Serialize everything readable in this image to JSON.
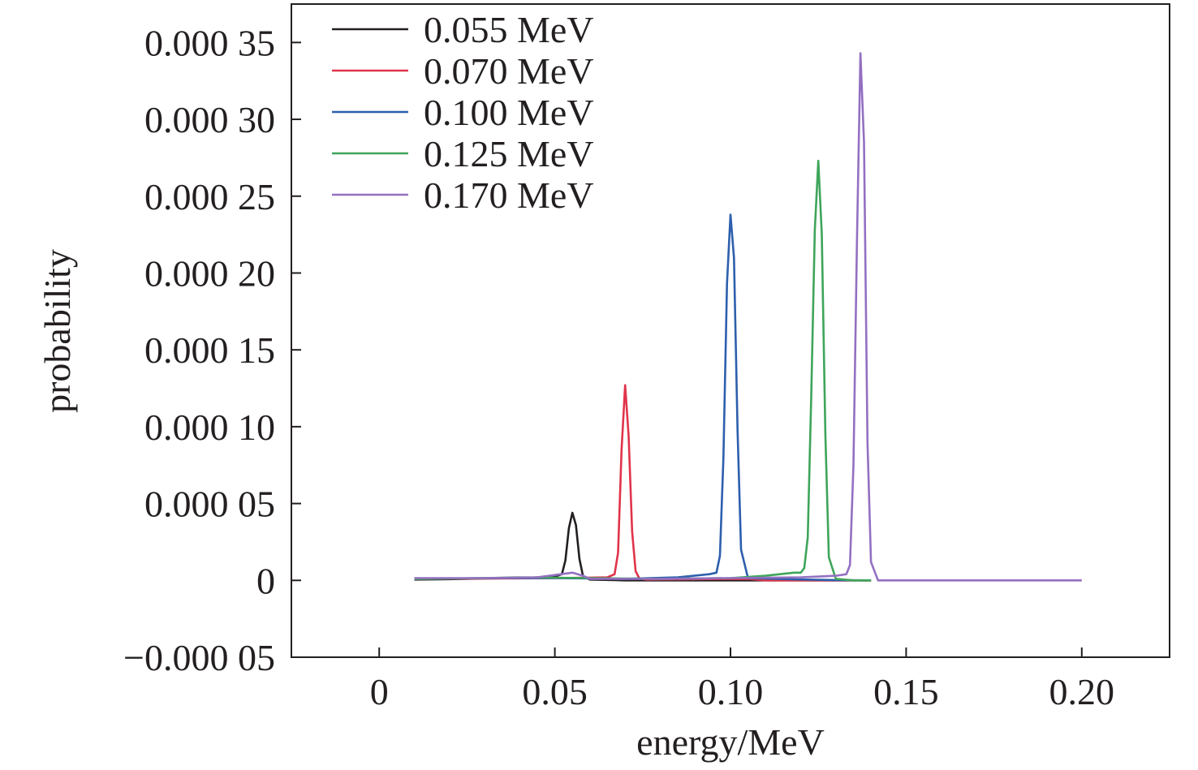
{
  "chart_data": {
    "type": "line",
    "xlabel": "energy/MeV",
    "ylabel": "probability",
    "xlim": [
      -0.025,
      0.225
    ],
    "ylim": [
      -5e-05,
      0.000375
    ],
    "x_ticks": [
      0,
      0.05,
      0.1,
      0.15,
      0.2
    ],
    "x_tick_labels": [
      "0",
      "0.05",
      "0.10",
      "0.15",
      "0.20"
    ],
    "y_ticks": [
      -5e-05,
      0,
      5e-05,
      0.0001,
      0.00015,
      0.0002,
      0.00025,
      0.0003,
      0.00035
    ],
    "y_tick_labels": [
      "−0.000 05",
      "0",
      "0.000 05",
      "0.000 10",
      "0.000 15",
      "0.000 20",
      "0.000 25",
      "0.000 30",
      "0.000 35"
    ],
    "grid": false,
    "legend_position": "top-left",
    "series": [
      {
        "name": "0.055 MeV",
        "color": "#231f20",
        "x": [
          0.01,
          0.02,
          0.03,
          0.04,
          0.045,
          0.05,
          0.052,
          0.053,
          0.054,
          0.055,
          0.056,
          0.057,
          0.058,
          0.06,
          0.07,
          0.08,
          0.1,
          0.12,
          0.14
        ],
        "y": [
          5e-07,
          8e-07,
          1.2e-06,
          1.5e-06,
          2e-06,
          2.5e-06,
          4e-06,
          1.3e-05,
          3.4e-05,
          4.4e-05,
          3.6e-05,
          1.4e-05,
          3e-06,
          5e-07,
          0,
          0,
          0,
          0,
          0
        ]
      },
      {
        "name": "0.070 MeV",
        "color": "#e0344b",
        "x": [
          0.01,
          0.03,
          0.05,
          0.06,
          0.065,
          0.067,
          0.068,
          0.069,
          0.07,
          0.071,
          0.072,
          0.073,
          0.074,
          0.076,
          0.09,
          0.105,
          0.11,
          0.14
        ],
        "y": [
          1e-06,
          1.2e-06,
          1.5e-06,
          1.8e-06,
          2e-06,
          4e-06,
          1.8e-05,
          8.5e-05,
          0.000127,
          9.4e-05,
          3.2e-05,
          6e-06,
          1.5e-06,
          5e-07,
          8e-07,
          1e-06,
          0,
          0
        ]
      },
      {
        "name": "0.100 MeV",
        "color": "#2d5fad",
        "x": [
          0.01,
          0.03,
          0.05,
          0.07,
          0.085,
          0.094,
          0.096,
          0.097,
          0.098,
          0.099,
          0.1,
          0.101,
          0.102,
          0.103,
          0.105,
          0.12,
          0.13,
          0.14
        ],
        "y": [
          1e-06,
          1.5e-06,
          1.5e-06,
          1e-06,
          2e-06,
          4e-06,
          5e-06,
          1.6e-05,
          8e-05,
          0.000193,
          0.000238,
          0.00021,
          9.8e-05,
          2e-05,
          1.5e-06,
          6e-07,
          2e-07,
          0
        ]
      },
      {
        "name": "0.125 MeV",
        "color": "#3ea55a",
        "x": [
          0.01,
          0.03,
          0.04,
          0.06,
          0.08,
          0.1,
          0.11,
          0.118,
          0.12,
          0.121,
          0.122,
          0.123,
          0.124,
          0.125,
          0.126,
          0.127,
          0.128,
          0.13,
          0.135,
          0.14
        ],
        "y": [
          1e-06,
          1.5e-06,
          2e-06,
          1.5e-06,
          1e-06,
          1.5e-06,
          3e-06,
          5e-06,
          5e-06,
          8e-06,
          2.8e-05,
          0.00012,
          0.000228,
          0.000273,
          0.000225,
          9.5e-05,
          1.5e-05,
          1e-06,
          0,
          0
        ]
      },
      {
        "name": "0.170 MeV",
        "color": "#9370c2",
        "x": [
          0.01,
          0.03,
          0.045,
          0.05,
          0.055,
          0.058,
          0.06,
          0.08,
          0.1,
          0.12,
          0.13,
          0.133,
          0.134,
          0.135,
          0.136,
          0.137,
          0.138,
          0.139,
          0.14,
          0.142,
          0.15,
          0.17,
          0.2
        ],
        "y": [
          1.5e-06,
          1.5e-06,
          2e-06,
          3.5e-06,
          5e-06,
          3e-06,
          1e-06,
          1e-06,
          1.5e-06,
          2e-06,
          3e-06,
          4e-06,
          1e-05,
          7.5e-05,
          0.00022,
          0.000343,
          0.000285,
          9e-05,
          1.2e-05,
          0,
          0,
          0,
          0
        ]
      }
    ]
  }
}
